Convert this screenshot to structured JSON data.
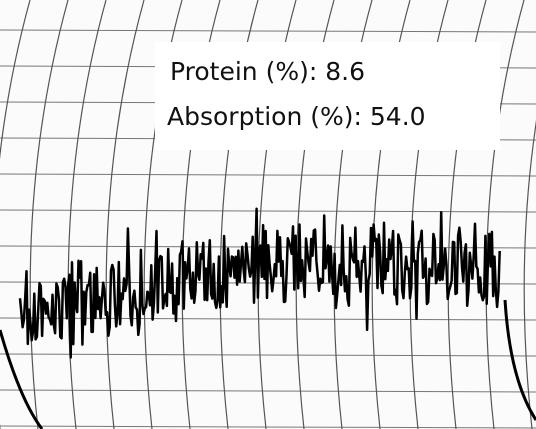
{
  "annotations": [
    "Protein (%): 8.6",
    "Absorption (%): 54.0"
  ]
}
